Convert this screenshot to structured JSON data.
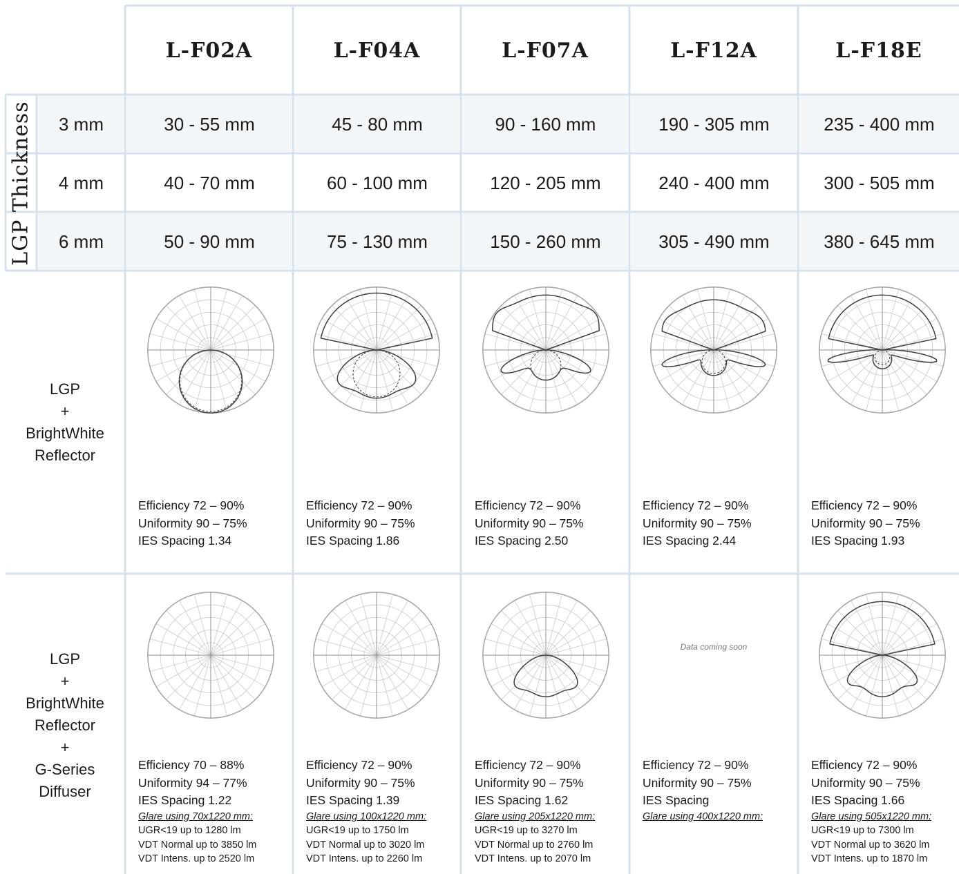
{
  "columns": [
    "L-F02A",
    "L-F04A",
    "L-F07A",
    "L-F12A",
    "L-F18E"
  ],
  "lgp_thickness": {
    "label": "LGP Thickness",
    "rows": [
      {
        "thickness": "3 mm",
        "values": [
          "30 - 55 mm",
          "45 - 80 mm",
          "90 - 160 mm",
          "190 - 305 mm",
          "235 - 400 mm"
        ]
      },
      {
        "thickness": "4 mm",
        "values": [
          "40 - 70 mm",
          "60 - 100 mm",
          "120 - 205 mm",
          "240 - 400 mm",
          "300 - 505 mm"
        ]
      },
      {
        "thickness": "6 mm",
        "values": [
          "50 - 90 mm",
          "75 - 130 mm",
          "150 - 260 mm",
          "305 - 490 mm",
          "380 - 645 mm"
        ]
      }
    ]
  },
  "reflector_row": {
    "label_lines": [
      "LGP",
      "+",
      "BrightWhite",
      "Reflector"
    ],
    "cells": [
      {
        "efficiency": "Efficiency 72 – 90%",
        "uniformity": "Uniformity 90 – 75%",
        "spacing": "IES Spacing 1.34"
      },
      {
        "efficiency": "Efficiency 72 – 90%",
        "uniformity": "Uniformity 90 – 75%",
        "spacing": "IES Spacing 1.86"
      },
      {
        "efficiency": "Efficiency 72 – 90%",
        "uniformity": "Uniformity 90 – 75%",
        "spacing": "IES Spacing 2.50"
      },
      {
        "efficiency": "Efficiency 72 – 90%",
        "uniformity": "Uniformity 90 – 75%",
        "spacing": "IES Spacing 2.44"
      },
      {
        "efficiency": "Efficiency 72 – 90%",
        "uniformity": "Uniformity 90 – 75%",
        "spacing": "IES Spacing 1.93"
      }
    ]
  },
  "diffuser_row": {
    "label_lines": [
      "LGP",
      "+",
      "BrightWhite",
      "Reflector",
      "+",
      "G-Series",
      "Diffuser"
    ],
    "placeholder": "Data coming soon",
    "cells": [
      {
        "efficiency": "Efficiency 70 – 88%",
        "uniformity": "Uniformity 94 – 77%",
        "spacing": "IES Spacing 1.22",
        "glare_title": "Glare using 70x1220 mm:",
        "ugr": "UGR<19 up to 1280 lm",
        "vdt_normal": "VDT Normal up to 3850 lm",
        "vdt_intens": "VDT Intens. up to  2520 lm"
      },
      {
        "efficiency": "Efficiency 72 – 90%",
        "uniformity": "Uniformity 90 – 75%",
        "spacing": "IES Spacing 1.39",
        "glare_title": "Glare using 100x1220 mm:",
        "ugr": "UGR<19 up to 1750 lm",
        "vdt_normal": "VDT Normal up to 3020 lm",
        "vdt_intens": "VDT Intens. up to 2260 lm"
      },
      {
        "efficiency": "Efficiency 72 – 90%",
        "uniformity": "Uniformity 90 – 75%",
        "spacing": "IES Spacing 1.62",
        "glare_title": "Glare using 205x1220 mm:",
        "ugr": "UGR<19 up to 3270 lm",
        "vdt_normal": "VDT Normal up to 2760 lm",
        "vdt_intens": "VDT Intens. up to 2070 lm"
      },
      {
        "efficiency": "Efficiency 72 – 90%",
        "uniformity": "Uniformity 90 – 75%",
        "spacing": "IES Spacing",
        "glare_title": "Glare using 400x1220 mm:",
        "ugr": "",
        "vdt_normal": "",
        "vdt_intens": ""
      },
      {
        "efficiency": "Efficiency 72 – 90%",
        "uniformity": "Uniformity 90 – 75%",
        "spacing": "IES Spacing 1.66",
        "glare_title": "Glare using 505x1220 mm:",
        "ugr": "UGR<19 up to 7300 lm",
        "vdt_normal": "VDT Normal up to 3620 lm",
        "vdt_intens": "VDT Intens. up to 1870 lm"
      }
    ]
  },
  "colors": {
    "grid_line": "#d6e1ec",
    "row_shade": "#f3f6f9",
    "curve": "#444444"
  }
}
